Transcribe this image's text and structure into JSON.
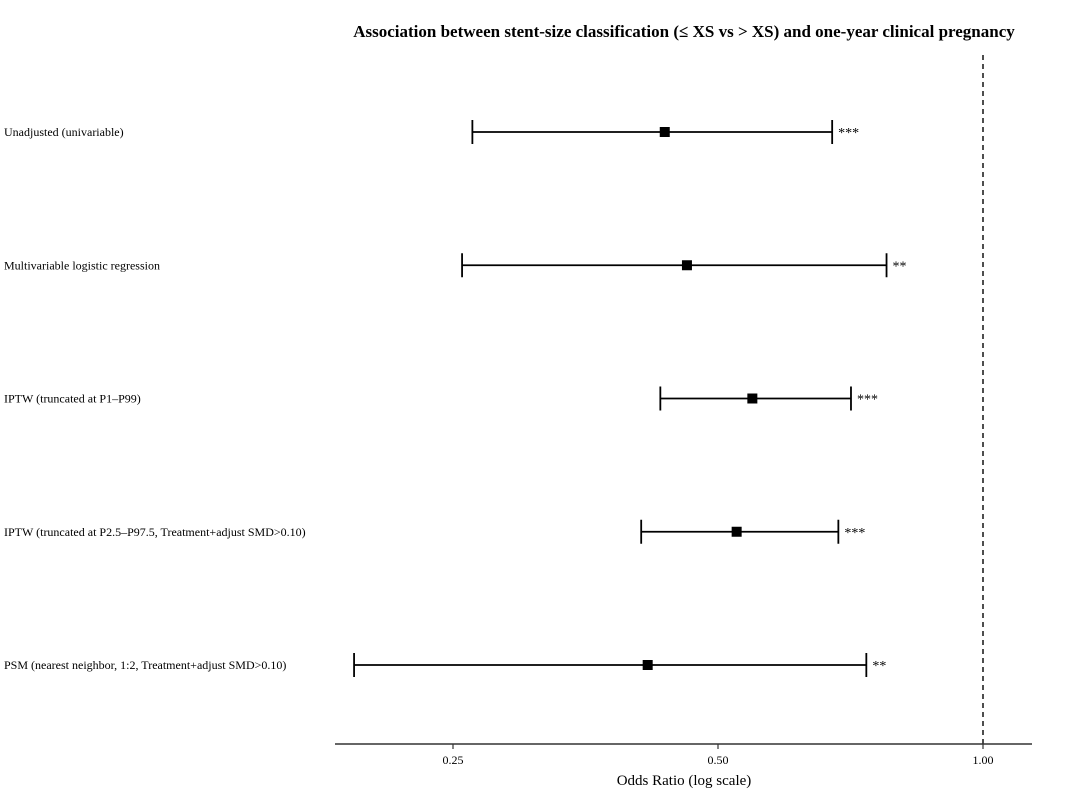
{
  "chart_data": {
    "type": "forest",
    "title": "Association between stent-size classification (≤ XS vs > XS) and one-year clinical pregnancy",
    "xlabel": "Odds Ratio (log scale)",
    "ylabel": "",
    "x_scale": "log",
    "xlim": [
      0.1425,
      1.1
    ],
    "x_ticks": [
      0.25,
      0.5,
      1.0
    ],
    "x_tick_labels": [
      "0.25",
      "0.50",
      "1.00"
    ],
    "reference_line": {
      "x": 1.0,
      "style": "dashed"
    },
    "grid": false,
    "legend": "none",
    "marker_color": "#000000",
    "rows": [
      {
        "label": "Unadjusted (univariable)",
        "or": 0.435,
        "ci_lower": 0.263,
        "ci_upper": 0.674,
        "significance": "***"
      },
      {
        "label": "Multivariable logistic regression",
        "or": 0.461,
        "ci_lower": 0.256,
        "ci_upper": 0.777,
        "significance": "**"
      },
      {
        "label": "IPTW (truncated at P1–P99)",
        "or": 0.547,
        "ci_lower": 0.43,
        "ci_upper": 0.708,
        "significance": "***"
      },
      {
        "label": "IPTW (truncated at P2.5–P97.5, Treatment+adjust SMD>0.10)",
        "or": 0.525,
        "ci_lower": 0.409,
        "ci_upper": 0.685,
        "significance": "***"
      },
      {
        "label": "PSM (nearest neighbor, 1:2, Treatment+adjust SMD>0.10)",
        "or": 0.416,
        "ci_lower": 0.193,
        "ci_upper": 0.737,
        "significance": "**"
      }
    ]
  }
}
